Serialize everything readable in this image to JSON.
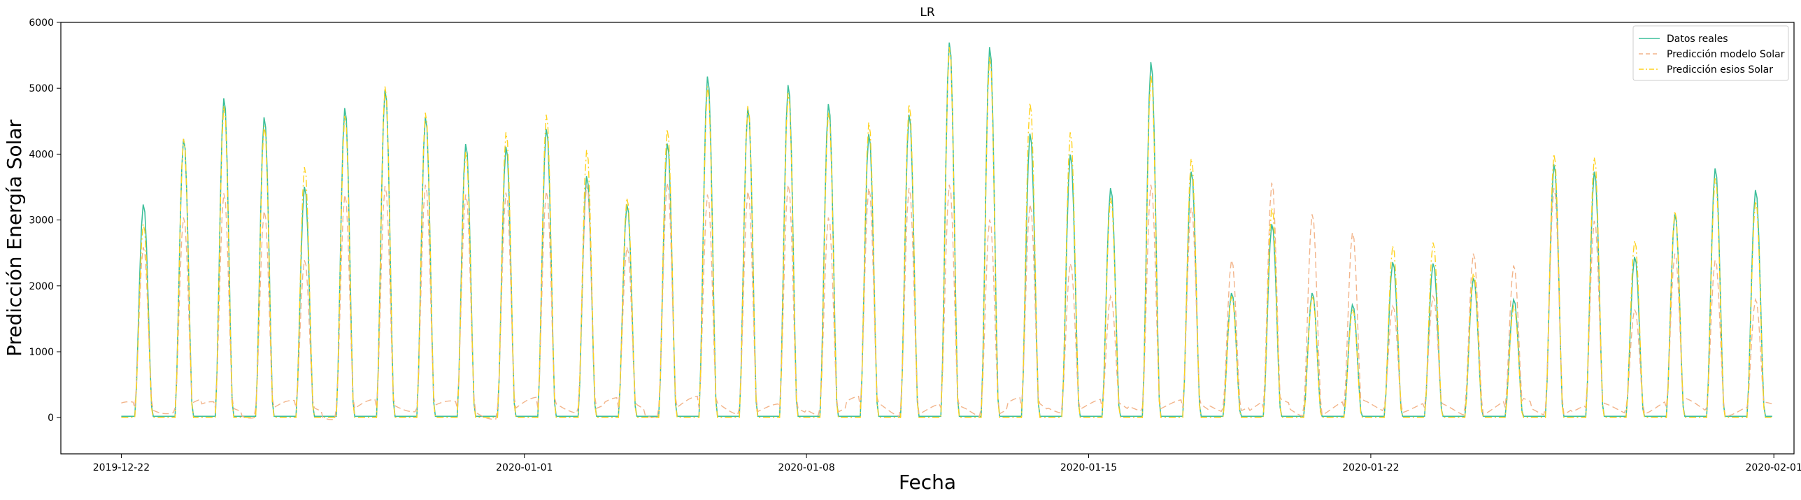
{
  "chart_data": {
    "type": "line",
    "title": "LR",
    "xlabel": "Fecha",
    "ylabel": "Predicción Energía Solar",
    "x_range": [
      "2019-12-20T12:00",
      "2020-02-01T12:00"
    ],
    "ylim": [
      -550,
      6000
    ],
    "y_ticks": [
      0,
      1000,
      2000,
      3000,
      4000,
      5000,
      6000
    ],
    "x_ticks": [
      "2019-12-22",
      "2020-01-01",
      "2020-01-08",
      "2020-01-15",
      "2020-01-22",
      "2020-02-01"
    ],
    "grid": false,
    "legend_position": "top-right",
    "daily_dates": [
      "2019-12-22",
      "2019-12-23",
      "2019-12-24",
      "2019-12-25",
      "2019-12-26",
      "2019-12-27",
      "2019-12-28",
      "2019-12-29",
      "2019-12-30",
      "2019-12-31",
      "2020-01-01",
      "2020-01-02",
      "2020-01-03",
      "2020-01-04",
      "2020-01-05",
      "2020-01-06",
      "2020-01-07",
      "2020-01-08",
      "2020-01-09",
      "2020-01-10",
      "2020-01-11",
      "2020-01-12",
      "2020-01-13",
      "2020-01-14",
      "2020-01-15",
      "2020-01-16",
      "2020-01-17",
      "2020-01-18",
      "2020-01-19",
      "2020-01-20",
      "2020-01-21",
      "2020-01-22",
      "2020-01-23",
      "2020-01-24",
      "2020-01-25",
      "2020-01-26",
      "2020-01-27",
      "2020-01-28",
      "2020-01-29",
      "2020-01-30",
      "2020-01-31"
    ],
    "series": [
      {
        "name": "Datos reales",
        "color": "#3cbf9a",
        "dash": "solid",
        "daily_peak": [
          3250,
          4250,
          4870,
          4580,
          3520,
          4720,
          5000,
          4580,
          4170,
          4130,
          4400,
          3680,
          3250,
          4180,
          5200,
          4720,
          5070,
          4780,
          4320,
          4620,
          5720,
          5650,
          4330,
          4010,
          3500,
          5420,
          3750,
          1900,
          2950,
          1900,
          1720,
          2370,
          2350,
          2130,
          1800,
          3860,
          3750,
          2450,
          3100,
          3800,
          3470
        ],
        "night_value": 20
      },
      {
        "name": "Predicción modelo Solar",
        "color": "#f2b48a",
        "dash": "dashed",
        "daily_peak": [
          2600,
          3050,
          3420,
          3150,
          2400,
          3400,
          3530,
          3550,
          3400,
          3430,
          3450,
          3550,
          2600,
          3580,
          3400,
          3450,
          3550,
          3050,
          3500,
          3500,
          3550,
          3020,
          3250,
          2350,
          1850,
          3550,
          3200,
          2400,
          3580,
          3100,
          2820,
          1700,
          1850,
          2500,
          2320,
          3500,
          3000,
          1650,
          2500,
          2400,
          1800
        ],
        "night_value": 150
      },
      {
        "name": "Predicción esios Solar",
        "color": "#ffd21e",
        "dash": "dashdot",
        "daily_peak": [
          2950,
          4250,
          4750,
          4450,
          3820,
          4600,
          5050,
          4650,
          4050,
          4350,
          4620,
          4080,
          3350,
          4400,
          5050,
          4750,
          4950,
          4650,
          4500,
          4780,
          5650,
          5500,
          4800,
          4350,
          3350,
          5230,
          3950,
          1850,
          3200,
          1850,
          1650,
          2620,
          2670,
          2200,
          1700,
          4020,
          3970,
          2700,
          3150,
          3650,
          3300
        ],
        "night_value": 0
      }
    ]
  }
}
